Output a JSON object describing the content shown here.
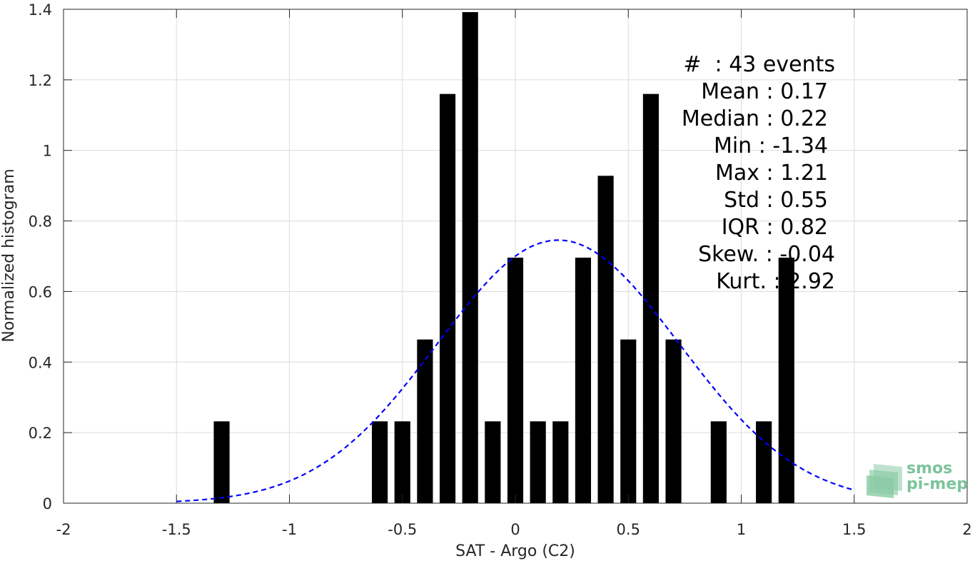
{
  "chart_data": {
    "type": "bar",
    "title": "",
    "xlabel": "SAT - Argo (C2)",
    "ylabel": "Normalized histogram",
    "xlim": [
      -2,
      2
    ],
    "ylim": [
      0,
      1.4
    ],
    "grid": true,
    "x_ticks": [
      "-2",
      "-1.5",
      "-1",
      "-0.5",
      "0",
      "0.5",
      "1",
      "1.5",
      "2"
    ],
    "y_ticks": [
      "0",
      "0.2",
      "0.4",
      "0.6",
      "0.8",
      "1",
      "1.2",
      "1.4"
    ],
    "bar_width": 0.07,
    "bars": [
      {
        "x": -1.3,
        "y": 0.232
      },
      {
        "x": -0.6,
        "y": 0.232
      },
      {
        "x": -0.5,
        "y": 0.232
      },
      {
        "x": -0.4,
        "y": 0.464
      },
      {
        "x": -0.3,
        "y": 1.16
      },
      {
        "x": -0.2,
        "y": 1.392
      },
      {
        "x": -0.1,
        "y": 0.232
      },
      {
        "x": 0.0,
        "y": 0.696
      },
      {
        "x": 0.1,
        "y": 0.232
      },
      {
        "x": 0.2,
        "y": 0.232
      },
      {
        "x": 0.3,
        "y": 0.696
      },
      {
        "x": 0.4,
        "y": 0.928
      },
      {
        "x": 0.5,
        "y": 0.464
      },
      {
        "x": 0.6,
        "y": 1.16
      },
      {
        "x": 0.7,
        "y": 0.464
      },
      {
        "x": 0.9,
        "y": 0.232
      },
      {
        "x": 1.1,
        "y": 0.232
      },
      {
        "x": 1.2,
        "y": 0.696
      }
    ],
    "fit_curve": {
      "style": "dashed",
      "color": "#0000ff",
      "mean": 0.19,
      "std": 0.535,
      "x_range": [
        -1.5,
        1.5
      ]
    },
    "bar_color": "#000000"
  },
  "stats": [
    {
      "key": "#  : ",
      "value": "43 events"
    },
    {
      "key": "Mean : ",
      "value": "0.17"
    },
    {
      "key": "Median : ",
      "value": "0.22"
    },
    {
      "key": "Min : ",
      "value": "-1.34"
    },
    {
      "key": "Max : ",
      "value": "1.21"
    },
    {
      "key": "Std : ",
      "value": "0.55"
    },
    {
      "key": "IQR : ",
      "value": "0.82"
    },
    {
      "key": "Skew. : ",
      "value": "-0.04"
    },
    {
      "key": "Kurt. : ",
      "value": "2.92"
    }
  ],
  "logo": {
    "line1": "smos",
    "line2": "pi-mep",
    "color": "#7cc49a"
  }
}
